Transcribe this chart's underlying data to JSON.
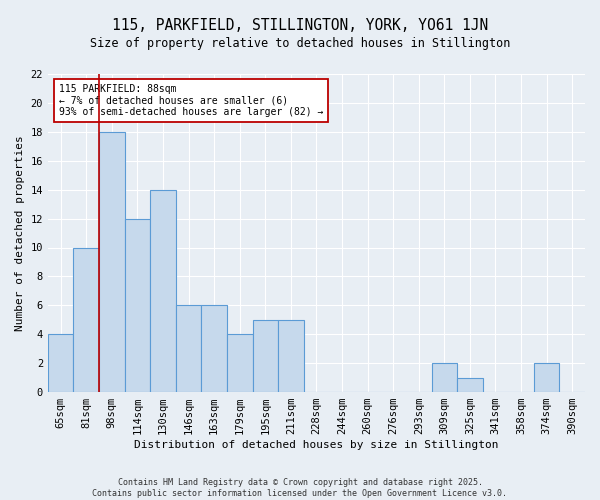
{
  "title": "115, PARKFIELD, STILLINGTON, YORK, YO61 1JN",
  "subtitle": "Size of property relative to detached houses in Stillington",
  "xlabel": "Distribution of detached houses by size in Stillington",
  "ylabel": "Number of detached properties",
  "bar_labels": [
    "65sqm",
    "81sqm",
    "98sqm",
    "114sqm",
    "130sqm",
    "146sqm",
    "163sqm",
    "179sqm",
    "195sqm",
    "211sqm",
    "228sqm",
    "244sqm",
    "260sqm",
    "276sqm",
    "293sqm",
    "309sqm",
    "325sqm",
    "341sqm",
    "358sqm",
    "374sqm",
    "390sqm"
  ],
  "bar_values": [
    4,
    10,
    18,
    12,
    14,
    6,
    6,
    4,
    5,
    5,
    0,
    0,
    0,
    0,
    0,
    2,
    1,
    0,
    0,
    2,
    0
  ],
  "bar_color": "#c6d9ec",
  "bar_edgecolor": "#5b9bd5",
  "ylim": [
    0,
    22
  ],
  "yticks": [
    0,
    2,
    4,
    6,
    8,
    10,
    12,
    14,
    16,
    18,
    20,
    22
  ],
  "red_line_x": 1.5,
  "annotation_line1": "115 PARKFIELD: 88sqm",
  "annotation_line2": "← 7% of detached houses are smaller (6)",
  "annotation_line3": "93% of semi-detached houses are larger (82) →",
  "annotation_box_color": "#ffffff",
  "annotation_box_edgecolor": "#bb0000",
  "footer": "Contains HM Land Registry data © Crown copyright and database right 2025.\nContains public sector information licensed under the Open Government Licence v3.0.",
  "background_color": "#e8eef4",
  "plot_background_color": "#e8eef4",
  "grid_color": "#ffffff",
  "title_fontsize": 10.5,
  "subtitle_fontsize": 8.5,
  "axis_label_fontsize": 8,
  "tick_fontsize": 7.5,
  "annotation_fontsize": 7,
  "footer_fontsize": 6
}
